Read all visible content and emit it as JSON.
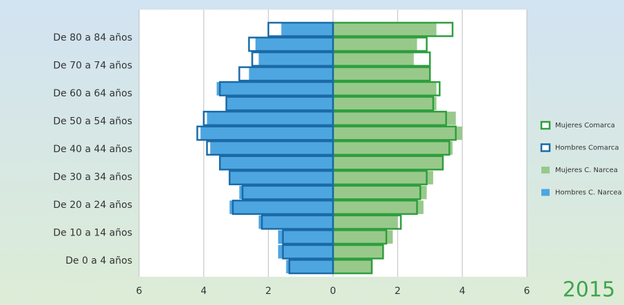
{
  "chart_data": {
    "type": "pyramid",
    "title": "2015",
    "categories": [
      "De 0 a 4 años",
      null,
      "De 10 a 14 años",
      null,
      "De 20 a 24 años",
      null,
      "De 30 a 34 años",
      null,
      "De 40 a 44 años",
      null,
      "De 50 a 54 años",
      null,
      "De 60 a 64 años",
      null,
      "De 70 a 74 años",
      null,
      "De 80 a 84 años"
    ],
    "series": [
      {
        "name": "Mujeres Comarca",
        "color": "#2e9e3e",
        "values": [
          1.2,
          1.55,
          1.65,
          2.1,
          2.6,
          2.7,
          2.9,
          3.4,
          3.6,
          3.8,
          3.5,
          3.1,
          3.3,
          3.0,
          3.0,
          2.9,
          3.7
        ]
      },
      {
        "name": "Hombres Comarca",
        "color": "#1a6aa6",
        "values": [
          1.35,
          1.55,
          1.55,
          2.2,
          3.1,
          2.8,
          3.2,
          3.5,
          3.9,
          4.2,
          4.0,
          3.3,
          3.5,
          2.9,
          2.5,
          2.6,
          2.0
        ]
      },
      {
        "name": "Mujeres C. Narcea",
        "color": "#98c98b",
        "values": [
          1.2,
          1.55,
          1.85,
          2.0,
          2.8,
          2.9,
          3.1,
          3.4,
          3.7,
          4.0,
          3.8,
          3.2,
          3.2,
          3.0,
          2.5,
          2.6,
          3.2
        ]
      },
      {
        "name": "Hombres C. Narcea",
        "color": "#4ea6e0",
        "values": [
          1.45,
          1.7,
          1.7,
          2.3,
          3.2,
          2.9,
          3.2,
          3.5,
          3.8,
          4.1,
          3.9,
          3.3,
          3.6,
          2.6,
          2.3,
          2.4,
          1.6
        ]
      }
    ],
    "xlim": [
      -6,
      6
    ],
    "xticks": [
      {
        "value": -6,
        "label": "6"
      },
      {
        "value": -4,
        "label": "4"
      },
      {
        "value": -2,
        "label": "2"
      },
      0,
      2,
      4,
      6
    ],
    "grid": true
  }
}
